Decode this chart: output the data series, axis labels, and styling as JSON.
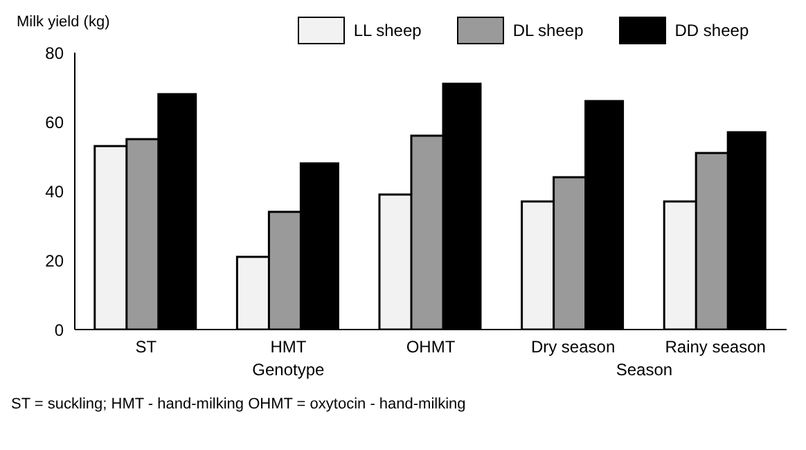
{
  "chart_data": {
    "type": "bar",
    "ylabel": "Milk yield (kg)",
    "categories": [
      "ST",
      "HMT",
      "OHMT",
      "Dry season",
      "Rainy season"
    ],
    "series": [
      {
        "name": "LL sheep",
        "color": "#f2f2f2",
        "values": [
          53,
          21,
          39,
          37,
          37
        ]
      },
      {
        "name": "DL sheep",
        "color": "#9a9a9a",
        "values": [
          55,
          34,
          56,
          44,
          51
        ]
      },
      {
        "name": "DD sheep",
        "color": "#000000",
        "values": [
          68,
          48,
          71,
          66,
          57
        ]
      }
    ],
    "ylim": [
      0,
      80
    ],
    "yticks": [
      0,
      20,
      40,
      60,
      80
    ],
    "grid": false,
    "legend": "top",
    "annotations": [
      "Genotype",
      "Season",
      "ST = suckling; HMT - hand-milking OHMT = oxytocin - hand-milking"
    ]
  }
}
